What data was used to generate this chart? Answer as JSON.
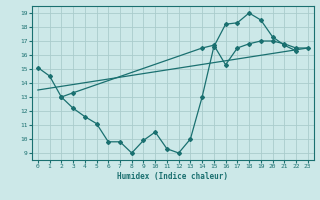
{
  "xlabel": "Humidex (Indice chaleur)",
  "bg_color": "#cce8e8",
  "line_color": "#1a7070",
  "grid_color": "#aacccc",
  "xlim": [
    -0.5,
    23.5
  ],
  "ylim": [
    8.5,
    19.5
  ],
  "xticks": [
    0,
    1,
    2,
    3,
    4,
    5,
    6,
    7,
    8,
    9,
    10,
    11,
    12,
    13,
    14,
    15,
    16,
    17,
    18,
    19,
    20,
    21,
    22,
    23
  ],
  "yticks": [
    9,
    10,
    11,
    12,
    13,
    14,
    15,
    16,
    17,
    18,
    19
  ],
  "line1_x": [
    0,
    1,
    2,
    3,
    4,
    5,
    6,
    7,
    8,
    9,
    10,
    11,
    12,
    13,
    14,
    15,
    16,
    17,
    18,
    19,
    20,
    21,
    22
  ],
  "line1_y": [
    15.1,
    14.5,
    13.0,
    12.2,
    11.6,
    11.1,
    9.8,
    9.8,
    9.0,
    9.9,
    10.5,
    9.3,
    9.0,
    10.0,
    13.0,
    16.6,
    18.2,
    18.3,
    19.0,
    18.5,
    17.3,
    16.7,
    16.3
  ],
  "line2_x": [
    0,
    23
  ],
  "line2_y": [
    13.5,
    16.5
  ],
  "line3_x": [
    2,
    3,
    14,
    15,
    16,
    17,
    18,
    19,
    20,
    21,
    22,
    23
  ],
  "line3_y": [
    13.0,
    13.3,
    16.5,
    16.7,
    15.3,
    16.5,
    16.8,
    17.0,
    17.0,
    16.8,
    16.5,
    16.5
  ]
}
